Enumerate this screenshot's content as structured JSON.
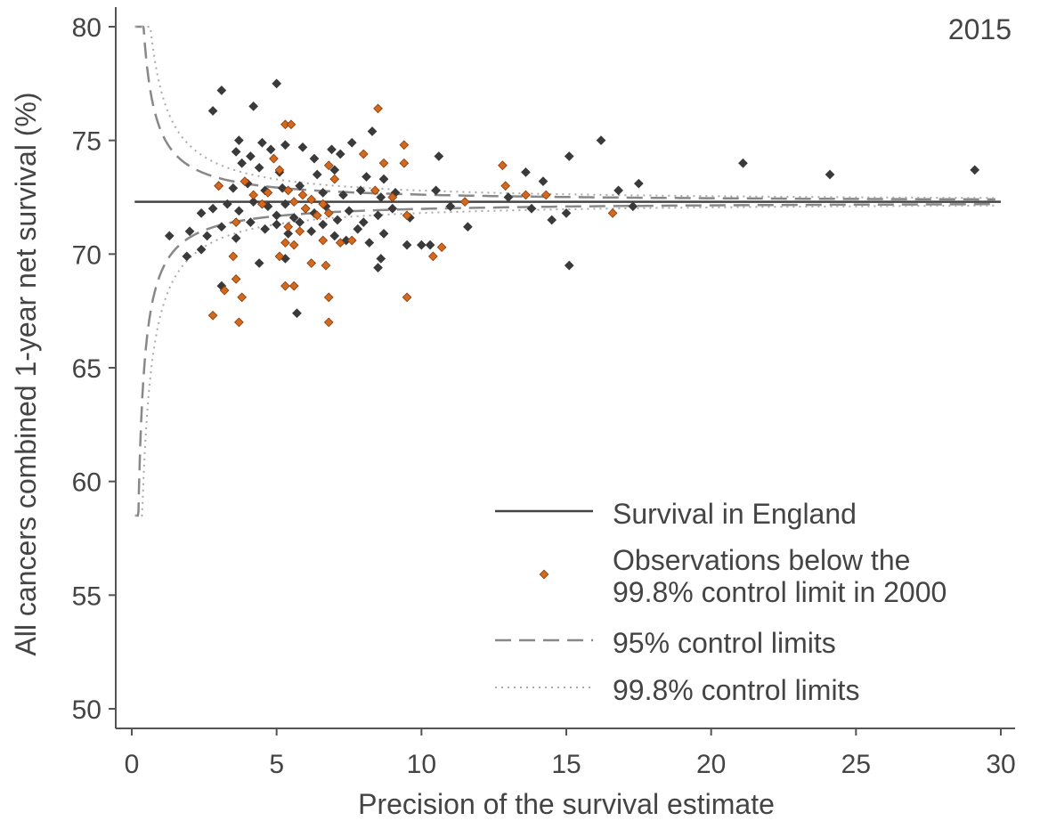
{
  "chart_data": {
    "type": "scatter",
    "title": "2015",
    "xlabel": "Precision of the survival estimate",
    "ylabel": "All cancers combined 1-year net survival (%)",
    "xlim": [
      0,
      30
    ],
    "ylim": [
      50,
      80
    ],
    "x_ticks": [
      0,
      5,
      10,
      15,
      20,
      25,
      30
    ],
    "y_ticks": [
      50,
      55,
      60,
      65,
      70,
      75,
      80
    ],
    "grid": false,
    "legend_position": "bottom-right",
    "colors": {
      "axis": "#555555",
      "reference_line": "#444444",
      "points": "#3a3a3a",
      "points_below": "#d2691e",
      "limits_95": "#888888",
      "limits_998": "#aaaaaa"
    },
    "england_survival": 72.3,
    "control_limit_scale": {
      "z95": 1.96,
      "z998": 3.09,
      "sigma_at_unit_precision": 1.6
    },
    "legend": [
      {
        "key": "reference",
        "label_lines": [
          "Survival in England"
        ]
      },
      {
        "key": "below",
        "label_lines": [
          "Observations below the",
          "99.8% control limit in 2000"
        ]
      },
      {
        "key": "limits95",
        "label_lines": [
          "95% control limits"
        ]
      },
      {
        "key": "limits998",
        "label_lines": [
          "99.8% control limits"
        ]
      }
    ],
    "series": [
      {
        "name": "Observations",
        "points": [
          [
            2.8,
            76.3
          ],
          [
            3.1,
            77.2
          ],
          [
            4.2,
            76.5
          ],
          [
            5.0,
            77.5
          ],
          [
            3.7,
            75.0
          ],
          [
            4.5,
            74.9
          ],
          [
            5.3,
            74.8
          ],
          [
            5.9,
            74.7
          ],
          [
            6.9,
            74.6
          ],
          [
            7.6,
            74.9
          ],
          [
            8.3,
            75.4
          ],
          [
            3.6,
            74.5
          ],
          [
            4.1,
            74.3
          ],
          [
            4.8,
            74.6
          ],
          [
            6.3,
            74.2
          ],
          [
            7.2,
            74.4
          ],
          [
            3.8,
            74.0
          ],
          [
            4.4,
            73.8
          ],
          [
            5.1,
            73.6
          ],
          [
            6.4,
            73.5
          ],
          [
            7.0,
            73.7
          ],
          [
            8.1,
            73.4
          ],
          [
            8.7,
            73.3
          ],
          [
            3.0,
            73.0
          ],
          [
            3.5,
            72.9
          ],
          [
            4.0,
            73.1
          ],
          [
            4.6,
            72.8
          ],
          [
            5.2,
            72.9
          ],
          [
            5.8,
            73.0
          ],
          [
            6.6,
            72.7
          ],
          [
            7.3,
            72.6
          ],
          [
            7.9,
            72.8
          ],
          [
            8.6,
            72.5
          ],
          [
            9.1,
            72.7
          ],
          [
            2.4,
            71.8
          ],
          [
            2.8,
            72.0
          ],
          [
            3.3,
            72.2
          ],
          [
            3.7,
            71.9
          ],
          [
            4.2,
            72.3
          ],
          [
            4.7,
            72.1
          ],
          [
            5.0,
            71.7
          ],
          [
            5.3,
            72.2
          ],
          [
            5.6,
            71.6
          ],
          [
            6.0,
            72.0
          ],
          [
            6.3,
            71.8
          ],
          [
            6.7,
            72.1
          ],
          [
            7.1,
            71.5
          ],
          [
            7.5,
            71.9
          ],
          [
            8.0,
            71.4
          ],
          [
            8.5,
            71.7
          ],
          [
            9.0,
            72.0
          ],
          [
            9.6,
            71.6
          ],
          [
            2.0,
            71.0
          ],
          [
            2.6,
            70.8
          ],
          [
            3.1,
            71.2
          ],
          [
            3.6,
            70.7
          ],
          [
            4.1,
            71.4
          ],
          [
            4.6,
            71.1
          ],
          [
            5.0,
            71.3
          ],
          [
            5.4,
            70.9
          ],
          [
            5.8,
            71.4
          ],
          [
            6.2,
            71.0
          ],
          [
            6.6,
            71.3
          ],
          [
            7.0,
            70.8
          ],
          [
            7.4,
            70.6
          ],
          [
            7.8,
            71.1
          ],
          [
            8.2,
            70.5
          ],
          [
            8.7,
            70.9
          ],
          [
            9.5,
            70.4
          ],
          [
            10.0,
            70.4
          ],
          [
            10.3,
            70.4
          ],
          [
            1.3,
            70.8
          ],
          [
            1.9,
            69.9
          ],
          [
            2.4,
            70.2
          ],
          [
            3.1,
            68.6
          ],
          [
            4.4,
            69.6
          ],
          [
            5.3,
            69.8
          ],
          [
            5.7,
            67.4
          ],
          [
            8.5,
            69.4
          ],
          [
            8.6,
            69.8
          ],
          [
            10.5,
            72.8
          ],
          [
            10.6,
            74.3
          ],
          [
            11.0,
            72.1
          ],
          [
            11.6,
            71.2
          ],
          [
            13.0,
            72.5
          ],
          [
            13.6,
            73.6
          ],
          [
            13.8,
            72.0
          ],
          [
            14.2,
            73.2
          ],
          [
            14.5,
            71.5
          ],
          [
            15.0,
            71.8
          ],
          [
            15.1,
            74.3
          ],
          [
            15.1,
            69.5
          ],
          [
            16.2,
            75.0
          ],
          [
            16.8,
            72.8
          ],
          [
            17.3,
            72.1
          ],
          [
            17.5,
            73.1
          ],
          [
            21.1,
            74.0
          ],
          [
            24.1,
            73.5
          ],
          [
            29.1,
            73.7
          ]
        ]
      },
      {
        "name": "Observations below the 99.8% control limit in 2000",
        "points": [
          [
            2.8,
            67.3
          ],
          [
            3.0,
            73.0
          ],
          [
            3.2,
            68.4
          ],
          [
            3.5,
            69.9
          ],
          [
            3.6,
            68.9
          ],
          [
            3.8,
            68.1
          ],
          [
            3.7,
            67.0
          ],
          [
            3.6,
            71.4
          ],
          [
            3.9,
            73.2
          ],
          [
            4.2,
            72.6
          ],
          [
            4.5,
            72.2
          ],
          [
            4.7,
            72.7
          ],
          [
            4.9,
            74.2
          ],
          [
            5.1,
            73.7
          ],
          [
            5.3,
            75.7
          ],
          [
            5.5,
            75.7
          ],
          [
            5.4,
            72.8
          ],
          [
            5.6,
            72.3
          ],
          [
            5.9,
            72.6
          ],
          [
            5.4,
            71.2
          ],
          [
            5.6,
            70.4
          ],
          [
            5.8,
            71.0
          ],
          [
            5.1,
            69.9
          ],
          [
            5.3,
            70.5
          ],
          [
            5.3,
            68.6
          ],
          [
            5.6,
            68.6
          ],
          [
            6.0,
            72.0
          ],
          [
            6.2,
            72.4
          ],
          [
            6.4,
            71.7
          ],
          [
            6.6,
            72.2
          ],
          [
            6.8,
            71.8
          ],
          [
            6.8,
            73.9
          ],
          [
            7.0,
            73.3
          ],
          [
            6.2,
            69.6
          ],
          [
            6.6,
            70.6
          ],
          [
            6.7,
            69.5
          ],
          [
            6.8,
            68.1
          ],
          [
            6.8,
            67.0
          ],
          [
            7.2,
            70.5
          ],
          [
            7.6,
            70.6
          ],
          [
            8.0,
            74.4
          ],
          [
            8.4,
            72.8
          ],
          [
            8.5,
            76.4
          ],
          [
            8.7,
            74.0
          ],
          [
            9.0,
            72.5
          ],
          [
            9.4,
            74.8
          ],
          [
            9.4,
            74.0
          ],
          [
            9.5,
            71.7
          ],
          [
            9.5,
            68.1
          ],
          [
            10.4,
            69.9
          ],
          [
            10.7,
            70.3
          ],
          [
            11.5,
            72.3
          ],
          [
            12.8,
            73.9
          ],
          [
            12.9,
            73.0
          ],
          [
            13.6,
            72.6
          ],
          [
            14.3,
            72.6
          ],
          [
            16.6,
            71.8
          ]
        ]
      }
    ]
  }
}
